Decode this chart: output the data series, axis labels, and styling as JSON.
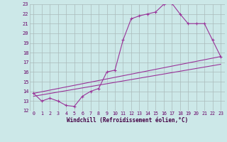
{
  "xlabel": "Windchill (Refroidissement éolien,°C)",
  "bg_color": "#cce8e8",
  "grid_color": "#aabbbb",
  "line_color": "#993399",
  "xlim": [
    -0.5,
    23.5
  ],
  "ylim": [
    12,
    23
  ],
  "xticks": [
    0,
    1,
    2,
    3,
    4,
    5,
    6,
    7,
    8,
    9,
    10,
    11,
    12,
    13,
    14,
    15,
    16,
    17,
    18,
    19,
    20,
    21,
    22,
    23
  ],
  "yticks": [
    12,
    13,
    14,
    15,
    16,
    17,
    18,
    19,
    20,
    21,
    22,
    23
  ],
  "line1_x": [
    0,
    1,
    2,
    3,
    4,
    5,
    6,
    7,
    8,
    9,
    10,
    11,
    12,
    13,
    14,
    15,
    16,
    17,
    18,
    19,
    20,
    21,
    22,
    23
  ],
  "line1_y": [
    13.8,
    13.0,
    13.3,
    13.0,
    12.55,
    12.45,
    13.5,
    14.0,
    14.3,
    16.0,
    16.2,
    19.3,
    21.5,
    21.8,
    22.0,
    22.2,
    23.0,
    23.1,
    22.0,
    21.0,
    21.0,
    21.0,
    19.3,
    17.6
  ],
  "line2_x": [
    0,
    23
  ],
  "line2_y": [
    13.8,
    17.6
  ],
  "line3_x": [
    0,
    23
  ],
  "line3_y": [
    13.5,
    16.8
  ]
}
